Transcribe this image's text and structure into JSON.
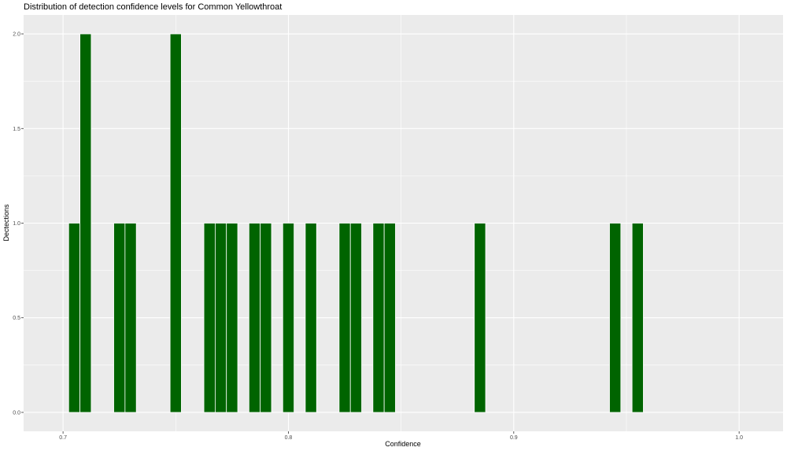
{
  "chart_data": {
    "type": "bar",
    "title": "Distribution of detection confidence levels for Common Yellowthroat",
    "xlabel": "Confidence",
    "ylabel": "Dectections",
    "xlim": [
      0.6825,
      1.0195
    ],
    "ylim": [
      -0.1,
      2.1
    ],
    "x_ticks": [
      0.7,
      0.8,
      0.9,
      1.0
    ],
    "x_tick_labels": [
      "0.7",
      "0.8",
      "0.9",
      "1.0"
    ],
    "y_ticks": [
      0.0,
      0.5,
      1.0,
      1.5,
      2.0
    ],
    "y_tick_labels": [
      "0.0",
      "0.5",
      "1.0",
      "1.5",
      "2.0"
    ],
    "bin_width": 0.005,
    "x": [
      0.705,
      0.71,
      0.725,
      0.73,
      0.75,
      0.765,
      0.77,
      0.775,
      0.785,
      0.79,
      0.8,
      0.81,
      0.825,
      0.83,
      0.84,
      0.845,
      0.885,
      0.945,
      0.955
    ],
    "values": [
      1,
      2,
      1,
      1,
      2,
      1,
      1,
      1,
      1,
      1,
      1,
      1,
      1,
      1,
      1,
      1,
      1,
      1,
      1
    ],
    "grid": true,
    "legend": "none",
    "colors": {
      "bar_fill": "#006400",
      "bar_stroke": "#ffffff",
      "panel_background": "#ebebeb",
      "grid_major": "#ffffff"
    }
  }
}
